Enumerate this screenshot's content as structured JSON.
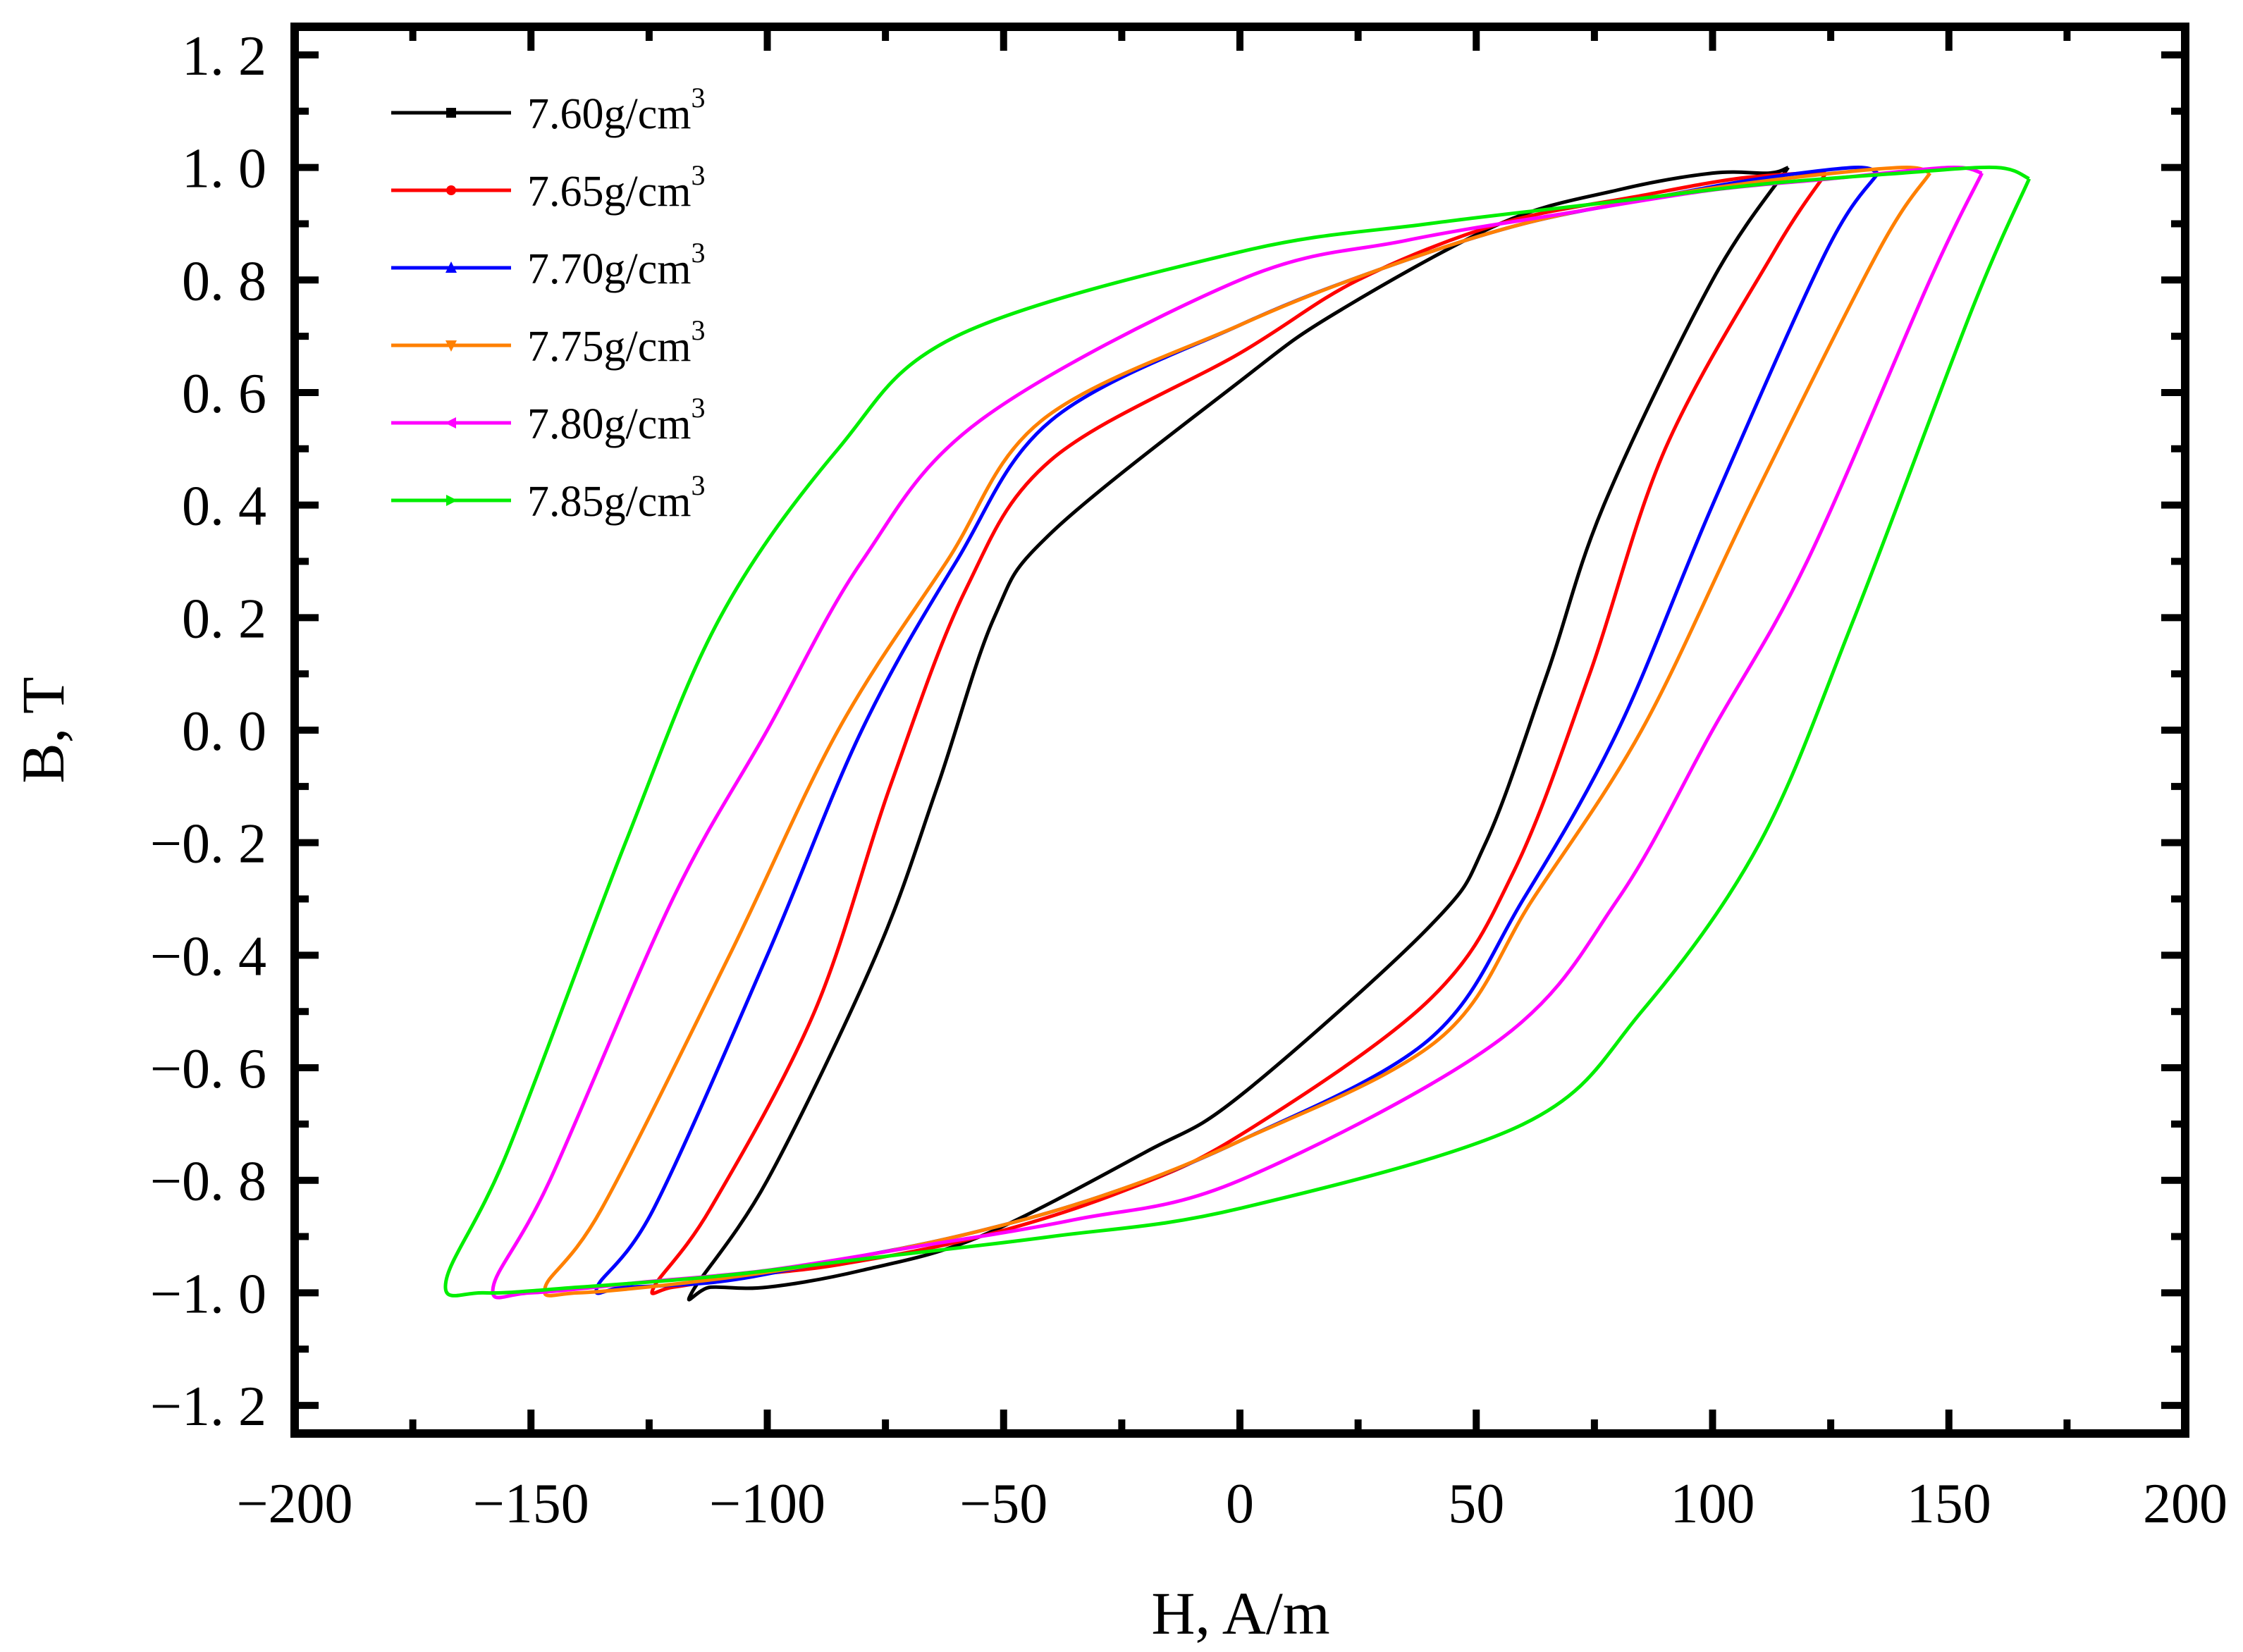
{
  "chart_data": {
    "type": "line",
    "title": "",
    "xlabel": "H, A/m",
    "ylabel": "B, T",
    "xlim": [
      -200,
      200
    ],
    "ylim": [
      -1.25,
      1.25
    ],
    "xticks": [
      -200,
      -150,
      -100,
      -50,
      0,
      50,
      100,
      150,
      200
    ],
    "xtick_labels": [
      "−200",
      "−150",
      "−100",
      "−50",
      "0",
      "50",
      "100",
      "150",
      "200"
    ],
    "yticks": [
      1.2,
      1.0,
      0.8,
      0.6,
      0.4,
      0.2,
      0.0,
      -0.2,
      -0.4,
      -0.6,
      -0.8,
      -1.0,
      -1.2
    ],
    "ytick_labels": [
      "1. 2",
      "1. 0",
      "0. 8",
      "0. 6",
      "0. 4",
      "0. 2",
      "0. 0",
      "−0. 2",
      "−0. 4",
      "−0. 6",
      "−0. 8",
      "−1. 0",
      "−1. 2"
    ],
    "grid": false,
    "legend_position": "top-left",
    "series": [
      {
        "name": "7.60g/cm",
        "sup": "3",
        "color": "#000000",
        "marker": "square",
        "x": [
          116,
          100,
          77,
          65,
          52,
          40,
          0,
          -20,
          -55,
          -80,
          -100,
          -112,
          -116,
          -100,
          -77,
          -64,
          -52,
          -40,
          0,
          20,
          55,
          80,
          100,
          112,
          116
        ],
        "y": [
          1.0,
          0.8,
          0.4,
          0.1,
          -0.2,
          -0.35,
          -0.65,
          -0.75,
          -0.9,
          -0.96,
          -0.99,
          -0.99,
          -1.0,
          -0.8,
          -0.4,
          -0.1,
          0.2,
          0.35,
          0.62,
          0.74,
          0.9,
          0.96,
          0.99,
          0.99,
          1.0
        ]
      },
      {
        "name": "7.65g/cm",
        "sup": "3",
        "color": "#ff0000",
        "marker": "circle",
        "x": [
          124,
          113,
          90,
          74,
          58,
          40,
          0,
          -25,
          -55,
          -85,
          -105,
          -120,
          -124,
          -112,
          -90,
          -74,
          -58,
          -40,
          0,
          25,
          55,
          85,
          105,
          120,
          124
        ],
        "y": [
          0.99,
          0.85,
          0.5,
          0.1,
          -0.25,
          -0.48,
          -0.72,
          -0.82,
          -0.9,
          -0.95,
          -0.97,
          -0.99,
          -0.99,
          -0.85,
          -0.5,
          -0.1,
          0.25,
          0.48,
          0.67,
          0.8,
          0.9,
          0.95,
          0.98,
          0.99,
          0.99
        ]
      },
      {
        "name": "7.70g/cm",
        "sup": "3",
        "color": "#0000ff",
        "marker": "triangle-up",
        "x": [
          135,
          124,
          100,
          80,
          60,
          40,
          0,
          -30,
          -60,
          -90,
          -110,
          -130,
          -136,
          -124,
          -100,
          -80,
          -60,
          -40,
          0,
          30,
          60,
          90,
          110,
          130,
          135
        ],
        "y": [
          0.99,
          0.85,
          0.4,
          0.0,
          -0.3,
          -0.55,
          -0.73,
          -0.83,
          -0.9,
          -0.95,
          -0.98,
          -0.99,
          -0.99,
          -0.85,
          -0.4,
          0.0,
          0.3,
          0.55,
          0.72,
          0.82,
          0.9,
          0.95,
          0.98,
          1.0,
          0.99
        ]
      },
      {
        "name": "7.75g/cm",
        "sup": "3",
        "color": "#ff8000",
        "marker": "triangle-down",
        "x": [
          146,
          135,
          108,
          85,
          62,
          42,
          0,
          -30,
          -60,
          -90,
          -115,
          -140,
          -147,
          -135,
          -108,
          -85,
          -62,
          -42,
          0,
          30,
          60,
          90,
          115,
          140,
          146
        ],
        "y": [
          0.99,
          0.85,
          0.4,
          0.0,
          -0.3,
          -0.55,
          -0.73,
          -0.83,
          -0.9,
          -0.95,
          -0.98,
          -1.0,
          -0.99,
          -0.85,
          -0.4,
          0.0,
          0.3,
          0.55,
          0.72,
          0.82,
          0.9,
          0.95,
          0.98,
          1.0,
          0.99
        ]
      },
      {
        "name": "7.80g/cm",
        "sup": "3",
        "color": "#ff00ff",
        "marker": "triangle-left",
        "x": [
          157,
          146,
          120,
          100,
          80,
          55,
          0,
          -35,
          -70,
          -100,
          -125,
          -150,
          -158,
          -146,
          -120,
          -100,
          -80,
          -55,
          0,
          35,
          70,
          100,
          125,
          150,
          157
        ],
        "y": [
          0.99,
          0.8,
          0.3,
          0.0,
          -0.3,
          -0.55,
          -0.8,
          -0.87,
          -0.92,
          -0.96,
          -0.98,
          -1.0,
          -0.99,
          -0.8,
          -0.3,
          0.0,
          0.3,
          0.55,
          0.8,
          0.87,
          0.92,
          0.96,
          0.98,
          1.0,
          0.99
        ]
      },
      {
        "name": "7.85g/cm",
        "sup": "3",
        "color": "#00ee00",
        "marker": "triangle-right",
        "x": [
          167,
          155,
          130,
          110,
          85,
          60,
          0,
          -40,
          -80,
          -110,
          -140,
          -160,
          -168,
          -155,
          -130,
          -110,
          -85,
          -60,
          0,
          40,
          80,
          110,
          140,
          160,
          167
        ],
        "y": [
          0.98,
          0.75,
          0.2,
          -0.2,
          -0.5,
          -0.7,
          -0.85,
          -0.9,
          -0.94,
          -0.97,
          -0.99,
          -1.0,
          -0.98,
          -0.75,
          -0.2,
          0.2,
          0.5,
          0.7,
          0.85,
          0.9,
          0.94,
          0.97,
          0.99,
          1.0,
          0.98
        ]
      }
    ]
  }
}
